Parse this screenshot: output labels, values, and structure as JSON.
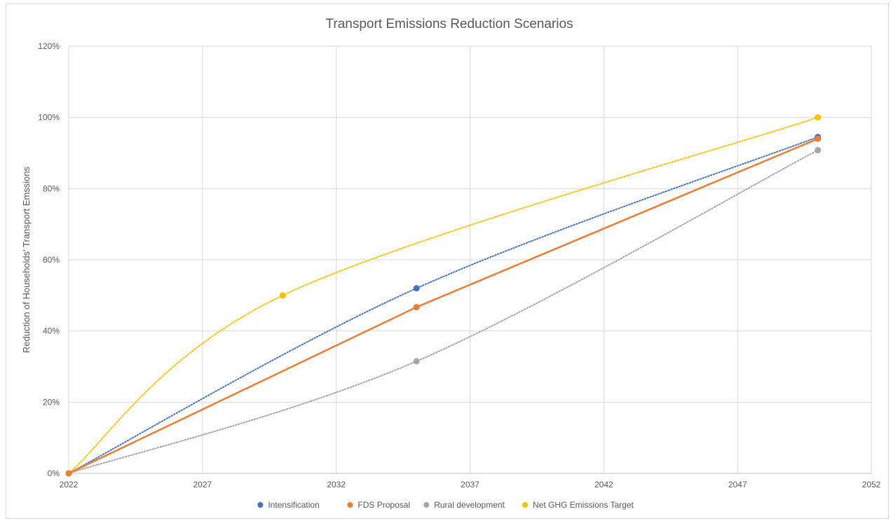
{
  "chart_data": {
    "type": "line",
    "title": "Transport Emissions Reduction Scenarios",
    "xlabel": "",
    "ylabel": "Reduction of Households' Transport Emssions",
    "xlim": [
      2022,
      2052
    ],
    "ylim": [
      0,
      1.2
    ],
    "x_ticks": [
      "2022",
      "2027",
      "2032",
      "2037",
      "2042",
      "2047",
      "2052"
    ],
    "y_ticks": [
      "0%",
      "20%",
      "40%",
      "60%",
      "80%",
      "100%",
      "120%"
    ],
    "grid": true,
    "legend_position": "bottom",
    "series": [
      {
        "name": "Intensification",
        "color": "#4472c4",
        "line_style": "dotted",
        "points": [
          [
            2022,
            0
          ],
          [
            2035,
            0.52
          ],
          [
            2050,
            0.945
          ]
        ]
      },
      {
        "name": "FDS Proposal",
        "color": "#ed7d31",
        "line_style": "solid",
        "points": [
          [
            2022,
            0
          ],
          [
            2035,
            0.467
          ],
          [
            2050,
            0.94
          ]
        ]
      },
      {
        "name": "Rural development",
        "color": "#a5a5a5",
        "line_style": "dotted",
        "points": [
          [
            2022,
            0
          ],
          [
            2035,
            0.315
          ],
          [
            2050,
            0.908
          ]
        ]
      },
      {
        "name": "Net GHG Emissions Target",
        "color": "#ffc000",
        "line_style": "dotted",
        "points": [
          [
            2022,
            0
          ],
          [
            2030,
            0.5
          ],
          [
            2050,
            1.0
          ]
        ]
      }
    ]
  }
}
